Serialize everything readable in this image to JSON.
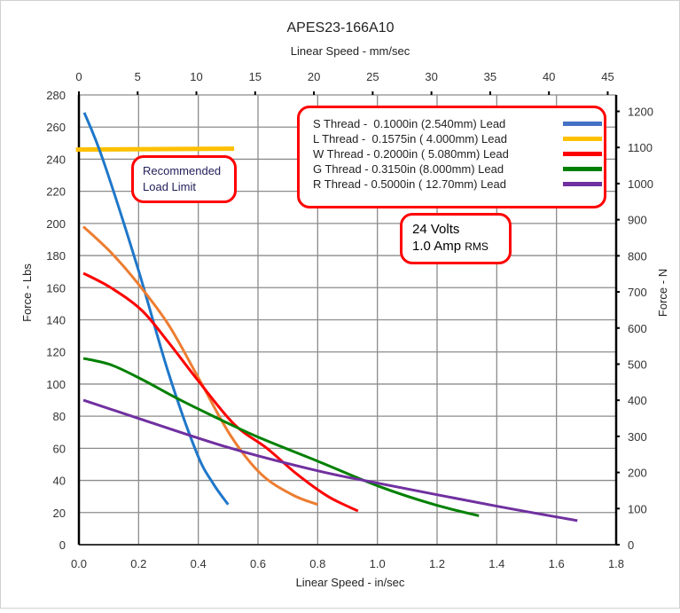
{
  "chart_data": {
    "type": "line",
    "title": "APES23-166A10",
    "xlabel": "Linear Speed - in/sec",
    "x2label": "Linear Speed - mm/sec",
    "ylabel": "Force - Lbs",
    "y2label": "Force - N",
    "xlim": [
      0,
      1.8
    ],
    "ylim": [
      0,
      280
    ],
    "x2lim": [
      0,
      45.72
    ],
    "y2lim": [
      0,
      1245.5
    ],
    "xticks": [
      "0.0",
      "0.2",
      "0.4",
      "0.6",
      "0.8",
      "1.0",
      "1.2",
      "1.4",
      "1.6",
      "1.8"
    ],
    "yticks": [
      "0",
      "20",
      "40",
      "60",
      "80",
      "100",
      "120",
      "140",
      "160",
      "180",
      "200",
      "220",
      "240",
      "260",
      "280"
    ],
    "x2ticks": [
      "0",
      "5",
      "10",
      "15",
      "20",
      "25",
      "30",
      "35",
      "40",
      "45"
    ],
    "y2ticks": [
      "0",
      "100",
      "200",
      "300",
      "400",
      "500",
      "600",
      "700",
      "800",
      "900",
      "1000",
      "1100",
      "1200"
    ],
    "grid": true,
    "series": [
      {
        "name": "S Thread -  0.1000in (2.540mm) Lead",
        "color": "#1f77c9",
        "legend_color": "#4472c4",
        "x": [
          0.018,
          0.08,
          0.196,
          0.3,
          0.395,
          0.45,
          0.5
        ],
        "y": [
          269,
          240,
          173,
          107,
          57,
          38,
          25
        ]
      },
      {
        "name": "L Thread -  0.1575in ( 4.000mm) Lead",
        "color": "#ed7d31",
        "legend_color": "#ffc000",
        "x": [
          0.015,
          0.107,
          0.196,
          0.3,
          0.4,
          0.508,
          0.61,
          0.716,
          0.8
        ],
        "y": [
          198,
          182,
          163,
          137,
          104,
          68,
          44,
          31,
          25
        ]
      },
      {
        "name": "W Thread - 0.2000in ( 5.080mm) Lead",
        "color": "#ff0000",
        "legend_color": "#ff0000",
        "x": [
          0.015,
          0.107,
          0.21,
          0.3,
          0.4,
          0.52,
          0.63,
          0.73,
          0.835,
          0.935
        ],
        "y": [
          169,
          160,
          146,
          126,
          102,
          75,
          60,
          44,
          30,
          21
        ]
      },
      {
        "name": "G Thread - 0.3150in (8.000mm) Lead",
        "color": "#008000",
        "legend_color": "#008000",
        "x": [
          0.015,
          0.107,
          0.21,
          0.33,
          0.45,
          0.6,
          0.8,
          1.01,
          1.19,
          1.34
        ],
        "y": [
          116,
          112,
          103,
          91,
          80,
          67,
          52,
          36,
          25,
          18
        ]
      },
      {
        "name": "R Thread - 0.5000in ( 12.70mm) Lead",
        "color": "#7030a0",
        "legend_color": "#7030a0",
        "x": [
          0.015,
          0.21,
          0.51,
          0.8,
          1.01,
          1.4,
          1.67
        ],
        "y": [
          90,
          78,
          60,
          46,
          38,
          24,
          15
        ]
      }
    ],
    "load_limit": {
      "value": 246,
      "x": [
        -0.01,
        0.52
      ],
      "color": "#ffc000",
      "label": [
        "Recommended",
        "Load Limit"
      ]
    },
    "annotation": [
      "24 Volts",
      "1.0 Amp",
      "RMS"
    ],
    "legend_placement": "top-right"
  }
}
